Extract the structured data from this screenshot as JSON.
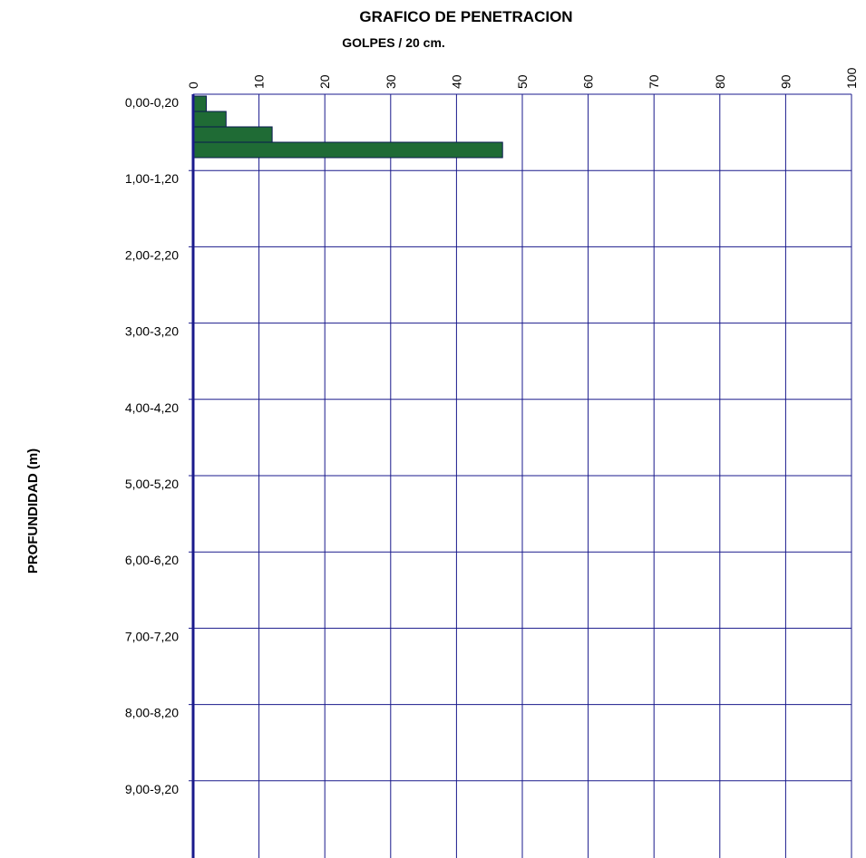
{
  "chart_data": {
    "type": "bar",
    "orientation": "horizontal",
    "title": "GRAFICO DE PENETRACION",
    "subtitle": "GOLPES / 20 cm.",
    "xlabel": "GOLPES / 20 cm.",
    "ylabel": "PROFUNDIDAD (m)",
    "xlim": [
      0,
      100
    ],
    "xticks": [
      "0",
      "10",
      "20",
      "30",
      "40",
      "50",
      "60",
      "70",
      "80",
      "90",
      "100"
    ],
    "depth_labels": [
      "0,00-0,20",
      "1,00-1,20",
      "2,00-2,20",
      "3,00-3,20",
      "4,00-4,20",
      "5,00-5,20",
      "6,00-6,20",
      "7,00-7,20",
      "8,00-8,20",
      "9,00-9,20"
    ],
    "series": [
      {
        "values": [
          2,
          5,
          12,
          47
        ]
      }
    ],
    "grid": true,
    "bar_color": "#1f6b35",
    "grid_color": "#1a1a8c"
  }
}
